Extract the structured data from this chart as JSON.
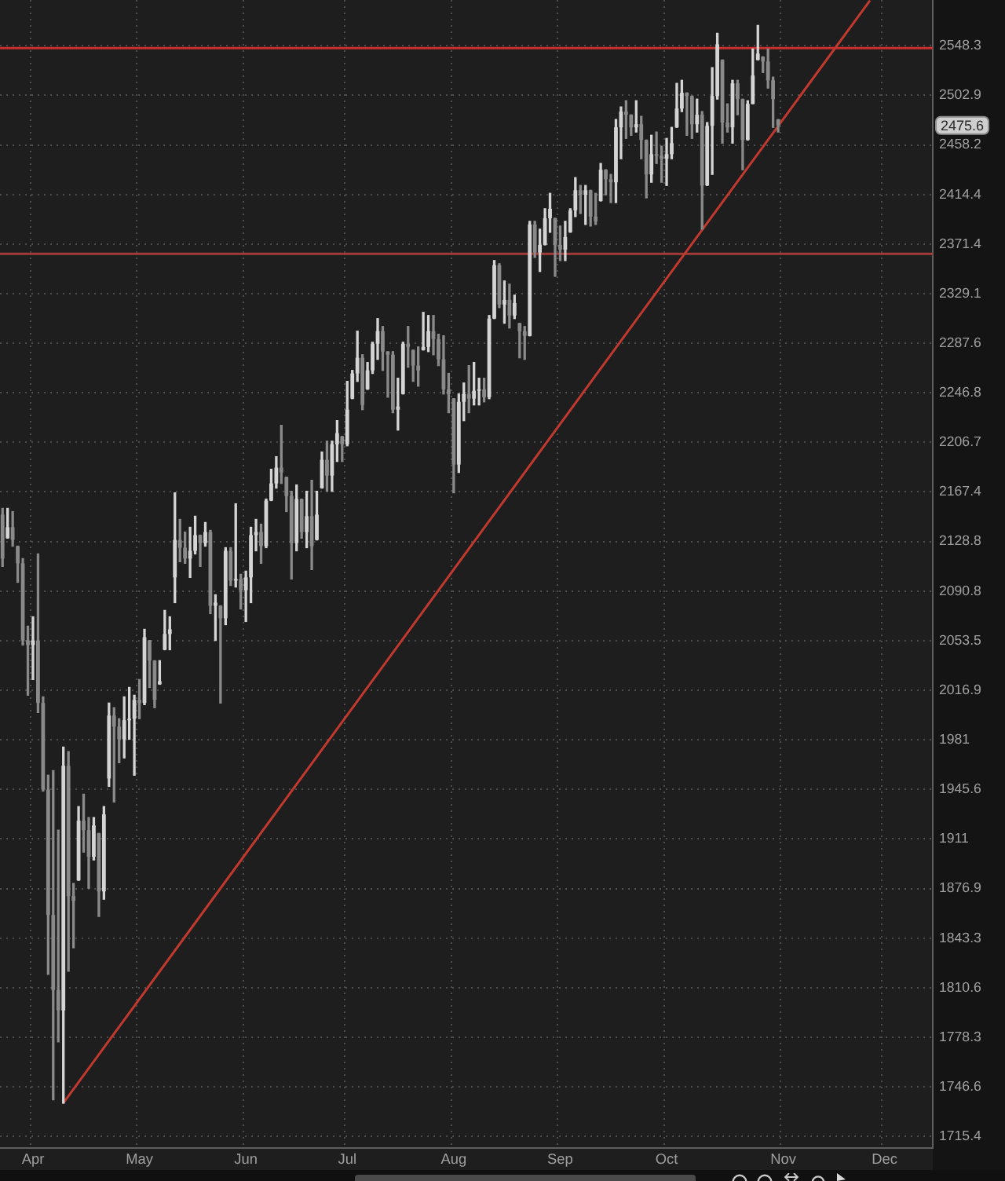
{
  "chart_data": {
    "type": "candlestick",
    "categories": [
      null,
      null,
      null,
      null,
      null,
      null,
      "Apr",
      null,
      null,
      null,
      null,
      null,
      null,
      null,
      null,
      null,
      null,
      null,
      null,
      null,
      null,
      null,
      null,
      null,
      null,
      null,
      null,
      "May",
      null,
      null,
      null,
      null,
      null,
      null,
      null,
      null,
      null,
      null,
      null,
      null,
      null,
      null,
      null,
      null,
      null,
      null,
      null,
      null,
      "Jun",
      null,
      null,
      null,
      null,
      null,
      null,
      null,
      null,
      null,
      null,
      null,
      null,
      null,
      null,
      null,
      null,
      null,
      null,
      null,
      "Jul",
      null,
      null,
      null,
      null,
      null,
      null,
      null,
      null,
      null,
      null,
      null,
      null,
      null,
      null,
      null,
      null,
      null,
      null,
      null,
      null,
      "Aug",
      null,
      null,
      null,
      null,
      null,
      null,
      null,
      null,
      null,
      null,
      null,
      null,
      null,
      null,
      null,
      null,
      null,
      null,
      null,
      null,
      "Sep",
      null,
      null,
      null,
      null,
      null,
      null,
      null,
      null,
      null,
      null,
      null,
      null,
      null,
      null,
      null,
      null,
      null,
      null,
      null,
      null,
      "Oct",
      null,
      null,
      null,
      null,
      null,
      null,
      null,
      null,
      null,
      null,
      null,
      null,
      null,
      null,
      null,
      null,
      null,
      null,
      null,
      null,
      null,
      null,
      "Nov",
      null,
      null,
      null,
      null,
      null,
      null,
      null,
      null,
      null,
      null,
      null,
      null,
      null,
      null,
      null,
      null,
      null,
      null,
      null,
      "Dec",
      null,
      null,
      null,
      null,
      null,
      null,
      null,
      null,
      null
    ],
    "ohlc": [
      [
        2149.6,
        2154.5,
        2109.6,
        2115.6
      ],
      [
        2131.3,
        2154.5,
        2131.3,
        2139.8
      ],
      [
        2139.8,
        2152.0,
        2125.2,
        2130.0
      ],
      [
        2125.2,
        2125.2,
        2097.5,
        2112.0
      ],
      [
        2112.0,
        2115.6,
        2050.3,
        2053.7
      ],
      [
        2053.7,
        2064.4,
        2013.3,
        2050.3
      ],
      [
        2050.3,
        2071.4,
        2024.8,
        2053.7
      ],
      [
        2053.7,
        2119.2,
        2000.8,
        2007.6
      ],
      [
        2007.6,
        2012.1,
        1944.5,
        1945.6
      ],
      [
        1945.6,
        1955.7,
        1819.4,
        1859.0
      ],
      [
        1859.0,
        1959.0,
        1738.4,
        1809.1
      ],
      [
        1809.1,
        1917.1,
        1775.4,
        1795.8
      ],
      [
        1795.8,
        1975.8,
        1736.4,
        1962.4
      ],
      [
        1962.4,
        1972.5,
        1821.5,
        1871.8
      ],
      [
        1871.8,
        1880.4,
        1837.0,
        1868.6
      ],
      [
        1882.5,
        1933.6,
        1882.5,
        1923.7
      ],
      [
        1923.7,
        1942.3,
        1901.9,
        1917.1
      ],
      [
        1917.1,
        1925.9,
        1877.1,
        1898.7
      ],
      [
        1898.7,
        1925.9,
        1896.5,
        1920.4
      ],
      [
        1914.9,
        1914.9,
        1858.0,
        1875.0
      ],
      [
        1875.0,
        1933.6,
        1869.7,
        1928.1
      ],
      [
        1953.4,
        2007.6,
        1947.8,
        1998.5
      ],
      [
        1998.5,
        2004.2,
        1936.8,
        1990.5
      ],
      [
        1990.5,
        1996.2,
        1964.6,
        1981.4
      ],
      [
        1981.4,
        2012.1,
        1968.0,
        1995.1
      ],
      [
        1995.1,
        2019.0,
        1981.4,
        1996.2
      ],
      [
        1996.2,
        2013.3,
        1955.7,
        2009.9
      ],
      [
        2009.9,
        2024.8,
        1996.2,
        2007.6
      ],
      [
        2007.6,
        2062.0,
        2006.4,
        2056.1
      ],
      [
        2053.7,
        2053.7,
        2019.0,
        2038.7
      ],
      [
        2038.7,
        2038.7,
        2004.2,
        2009.9
      ],
      [
        2021.3,
        2038.7,
        2021.3,
        2023.6
      ],
      [
        2046.8,
        2076.2,
        2046.8,
        2058.5
      ],
      [
        2058.5,
        2071.4,
        2046.8,
        2062.0
      ],
      [
        2101.2,
        2166.7,
        2082.1,
        2130.0
      ],
      [
        2130.0,
        2145.9,
        2113.2,
        2124.0
      ],
      [
        2124.0,
        2136.1,
        2112.0,
        2115.6
      ],
      [
        2115.6,
        2139.8,
        2101.2,
        2121.6
      ],
      [
        2121.6,
        2148.4,
        2119.2,
        2133.7
      ],
      [
        2133.7,
        2133.7,
        2109.6,
        2127.6
      ],
      [
        2127.6,
        2143.5,
        2125.2,
        2136.1
      ],
      [
        2136.1,
        2137.4,
        2073.8,
        2079.7
      ],
      [
        2079.7,
        2088.0,
        2053.7,
        2082.1
      ],
      [
        2079.7,
        2079.7,
        2007.6,
        2070.3
      ],
      [
        2070.3,
        2124.0,
        2065.5,
        2121.6
      ],
      [
        2121.6,
        2124.0,
        2095.1,
        2098.8
      ],
      [
        2098.8,
        2158.1,
        2093.9,
        2100.0
      ],
      [
        2100.0,
        2103.6,
        2077.3,
        2091.5
      ],
      [
        2091.5,
        2106.0,
        2067.9,
        2101.2
      ],
      [
        2101.2,
        2139.8,
        2082.1,
        2133.7
      ],
      [
        2133.7,
        2145.9,
        2121.6,
        2136.1
      ],
      [
        2136.1,
        2142.2,
        2112.0,
        2125.2
      ],
      [
        2125.2,
        2161.8,
        2124.0,
        2160.6
      ],
      [
        2160.6,
        2185.3,
        2160.6,
        2174.1
      ],
      [
        2174.1,
        2195.3,
        2170.4,
        2186.6
      ],
      [
        2186.6,
        2220.4,
        2174.1,
        2182.8
      ],
      [
        2179.1,
        2179.1,
        2152.0,
        2164.2
      ],
      [
        2164.2,
        2167.9,
        2100.0,
        2127.6
      ],
      [
        2127.6,
        2172.9,
        2121.6,
        2161.8
      ],
      [
        2161.8,
        2161.8,
        2131.3,
        2136.1
      ],
      [
        2136.1,
        2167.9,
        2124.0,
        2148.4
      ],
      [
        2148.4,
        2176.6,
        2107.2,
        2125.2
      ],
      [
        2130.0,
        2167.9,
        2130.0,
        2149.6
      ],
      [
        2170.4,
        2199.0,
        2170.4,
        2192.8
      ],
      [
        2192.8,
        2207.7,
        2167.9,
        2180.3
      ],
      [
        2180.3,
        2207.7,
        2167.9,
        2205.2
      ],
      [
        2205.2,
        2224.2,
        2191.5,
        2214.1
      ],
      [
        2211.5,
        2211.5,
        2191.5,
        2205.2
      ],
      [
        2205.2,
        2256.1,
        2204.0,
        2233.1
      ],
      [
        2242.0,
        2265.1,
        2242.0,
        2262.6
      ],
      [
        2262.6,
        2297.6,
        2256.1,
        2275.5
      ],
      [
        2275.5,
        2278.0,
        2233.1,
        2236.9
      ],
      [
        2249.6,
        2271.6,
        2249.6,
        2265.1
      ],
      [
        2265.1,
        2288.4,
        2262.6,
        2287.1
      ],
      [
        2287.1,
        2308.1,
        2274.2,
        2297.6
      ],
      [
        2297.6,
        2301.5,
        2265.1,
        2280.6
      ],
      [
        2280.6,
        2280.6,
        2243.2,
        2278.0
      ],
      [
        2278.0,
        2280.6,
        2230.6,
        2233.1
      ],
      [
        2233.1,
        2258.7,
        2216.6,
        2235.6
      ],
      [
        2245.8,
        2288.4,
        2245.8,
        2287.1
      ],
      [
        2287.1,
        2301.5,
        2267.7,
        2284.5
      ],
      [
        2281.9,
        2281.9,
        2256.1,
        2269.0
      ],
      [
        2269.0,
        2284.5,
        2252.2,
        2265.1
      ],
      [
        2281.9,
        2313.3,
        2281.9,
        2284.5
      ],
      [
        2284.5,
        2310.7,
        2280.6,
        2297.6
      ],
      [
        2297.6,
        2310.7,
        2278.0,
        2291.0
      ],
      [
        2291.0,
        2295.0,
        2269.0,
        2274.2
      ],
      [
        2274.2,
        2293.7,
        2245.8,
        2249.6
      ],
      [
        2249.6,
        2262.6,
        2230.6,
        2245.8
      ],
      [
        2242.0,
        2242.0,
        2166.7,
        2189.0
      ],
      [
        2189.0,
        2245.8,
        2182.8,
        2239.4
      ],
      [
        2239.4,
        2254.8,
        2224.2,
        2245.8
      ],
      [
        2245.8,
        2269.0,
        2230.6,
        2242.0
      ],
      [
        2242.0,
        2271.6,
        2236.9,
        2248.4
      ],
      [
        2248.4,
        2258.7,
        2236.9,
        2249.6
      ],
      [
        2249.6,
        2258.7,
        2239.4,
        2243.2
      ],
      [
        2243.2,
        2310.7,
        2242.0,
        2308.1
      ],
      [
        2308.1,
        2357.2,
        2308.1,
        2353.2
      ],
      [
        2353.2,
        2354.5,
        2317.3,
        2319.9
      ],
      [
        2319.9,
        2339.8,
        2304.2,
        2323.8
      ],
      [
        2323.8,
        2337.1,
        2300.2,
        2310.7
      ],
      [
        2310.7,
        2327.8,
        2308.1,
        2321.2
      ],
      [
        2304.2,
        2304.2,
        2275.5,
        2297.6
      ],
      [
        2297.6,
        2301.5,
        2274.2,
        2293.7
      ],
      [
        2293.7,
        2391.0,
        2293.7,
        2388.3
      ],
      [
        2388.3,
        2391.0,
        2359.9,
        2364.0
      ],
      [
        2364.0,
        2384.2,
        2347.9,
        2370.6
      ],
      [
        2370.6,
        2401.9,
        2370.6,
        2393.7
      ],
      [
        2393.7,
        2415.4,
        2381.5,
        2401.9
      ],
      [
        2393.7,
        2393.7,
        2343.8,
        2370.6
      ],
      [
        2370.6,
        2386.9,
        2357.2,
        2366.6
      ],
      [
        2366.6,
        2391.0,
        2357.2,
        2377.4
      ],
      [
        2381.5,
        2401.9,
        2381.5,
        2400.5
      ],
      [
        2400.5,
        2429.2,
        2395.1,
        2418.1
      ],
      [
        2418.1,
        2422.3,
        2397.8,
        2414.1
      ],
      [
        2414.1,
        2422.3,
        2388.3,
        2418.1
      ],
      [
        2418.1,
        2418.1,
        2386.9,
        2395.1
      ],
      [
        2395.1,
        2415.4,
        2388.3,
        2391.0
      ],
      [
        2408.7,
        2441.7,
        2408.7,
        2436.2
      ],
      [
        2436.2,
        2436.2,
        2414.1,
        2427.8
      ],
      [
        2427.8,
        2432.0,
        2407.3,
        2425.1
      ],
      [
        2425.1,
        2481.0,
        2407.3,
        2473.9
      ],
      [
        2473.9,
        2492.3,
        2445.9,
        2488.1
      ],
      [
        2488.1,
        2497.9,
        2464.0,
        2485.2
      ],
      [
        2485.2,
        2485.2,
        2466.8,
        2473.9
      ],
      [
        2473.9,
        2497.9,
        2469.7,
        2476.7
      ],
      [
        2476.7,
        2483.8,
        2445.9,
        2462.6
      ],
      [
        2462.6,
        2462.6,
        2411.4,
        2432.0
      ],
      [
        2432.0,
        2466.8,
        2425.1,
        2450.0
      ],
      [
        2450.0,
        2469.7,
        2441.7,
        2448.6
      ],
      [
        2448.6,
        2457.0,
        2425.1,
        2445.9
      ],
      [
        2445.9,
        2464.0,
        2422.3,
        2450.0
      ],
      [
        2450.0,
        2473.9,
        2445.9,
        2459.8
      ],
      [
        2473.9,
        2513.7,
        2473.9,
        2490.9
      ],
      [
        2490.9,
        2516.5,
        2488.1,
        2505.1
      ],
      [
        2505.1,
        2505.1,
        2466.8,
        2502.2
      ],
      [
        2502.2,
        2502.2,
        2464.0,
        2476.7
      ],
      [
        2476.7,
        2499.4,
        2469.7,
        2485.2
      ],
      [
        2485.2,
        2488.1,
        2384.2,
        2422.3
      ],
      [
        2422.3,
        2478.2,
        2422.3,
        2475.3
      ],
      [
        2475.3,
        2528.1,
        2432.0,
        2502.2
      ],
      [
        2502.2,
        2559.8,
        2499.4,
        2549.6
      ],
      [
        2535.2,
        2535.2,
        2459.8,
        2478.2
      ],
      [
        2478.2,
        2495.1,
        2469.7,
        2473.9
      ],
      [
        2473.9,
        2516.5,
        2459.8,
        2513.7
      ],
      [
        2513.7,
        2516.5,
        2485.2,
        2499.4
      ],
      [
        2499.4,
        2499.4,
        2436.2,
        2462.6
      ],
      [
        2462.6,
        2497.9,
        2462.6,
        2495.1
      ],
      [
        2495.1,
        2545.3,
        2495.1,
        2520.9
      ],
      [
        2535.2,
        2567.1,
        2535.2,
        2541.0
      ],
      [
        2538.1,
        2538.1,
        2523.7,
        2533.8
      ],
      [
        2533.8,
        2545.3,
        2509.4,
        2516.5
      ],
      [
        2516.5,
        2519.4,
        2473.9,
        2499.4
      ],
      [
        2481.0,
        2481.0,
        2469.7,
        2475.6
      ],
      null,
      null,
      null,
      null,
      null,
      null,
      null,
      null,
      null,
      null,
      null,
      null,
      null,
      null,
      null,
      null,
      null,
      null,
      null,
      null,
      null,
      null,
      null,
      null,
      null,
      null,
      null,
      null,
      null,
      null
    ],
    "colors": [
      "#8a8a8a",
      "#d4d4d4",
      "#8a8a8a",
      "#8a8a8a",
      "#8a8a8a",
      "#8a8a8a",
      "#d4d4d4",
      "#8a8a8a",
      "#8a8a8a",
      "#8a8a8a",
      "#8a8a8a",
      "#8a8a8a",
      "#d4d4d4",
      "#8a8a8a",
      "#8a8a8a",
      "#d4d4d4",
      "#8a8a8a",
      "#8a8a8a",
      "#d4d4d4",
      "#8a8a8a",
      "#d4d4d4",
      "#d4d4d4",
      "#8a8a8a",
      "#8a8a8a",
      "#d4d4d4",
      "#d4d4d4",
      "#d4d4d4",
      "#8a8a8a",
      "#d4d4d4",
      "#8a8a8a",
      "#8a8a8a",
      "#d4d4d4",
      "#d4d4d4",
      "#d4d4d4",
      "#d4d4d4",
      "#8a8a8a",
      "#8a8a8a",
      "#d4d4d4",
      "#d4d4d4",
      "#8a8a8a",
      "#d4d4d4",
      "#8a8a8a",
      "#d4d4d4",
      "#8a8a8a",
      "#d4d4d4",
      "#8a8a8a",
      "#d4d4d4",
      "#8a8a8a",
      "#d4d4d4",
      "#d4d4d4",
      "#d4d4d4",
      "#8a8a8a",
      "#d4d4d4",
      "#d4d4d4",
      "#d4d4d4",
      "#8a8a8a",
      "#8a8a8a",
      "#8a8a8a",
      "#d4d4d4",
      "#8a8a8a",
      "#d4d4d4",
      "#8a8a8a",
      "#d4d4d4",
      "#d4d4d4",
      "#8a8a8a",
      "#d4d4d4",
      "#d4d4d4",
      "#8a8a8a",
      "#d4d4d4",
      "#d4d4d4",
      "#d4d4d4",
      "#8a8a8a",
      "#d4d4d4",
      "#d4d4d4",
      "#d4d4d4",
      "#8a8a8a",
      "#8a8a8a",
      "#8a8a8a",
      "#d4d4d4",
      "#d4d4d4",
      "#8a8a8a",
      "#8a8a8a",
      "#8a8a8a",
      "#d4d4d4",
      "#d4d4d4",
      "#8a8a8a",
      "#8a8a8a",
      "#8a8a8a",
      "#8a8a8a",
      "#8a8a8a",
      "#d4d4d4",
      "#d4d4d4",
      "#8a8a8a",
      "#d4d4d4",
      "#d4d4d4",
      "#8a8a8a",
      "#d4d4d4",
      "#d4d4d4",
      "#8a8a8a",
      "#d4d4d4",
      "#8a8a8a",
      "#d4d4d4",
      "#8a8a8a",
      "#8a8a8a",
      "#d4d4d4",
      "#8a8a8a",
      "#d4d4d4",
      "#d4d4d4",
      "#d4d4d4",
      "#8a8a8a",
      "#8a8a8a",
      "#d4d4d4",
      "#d4d4d4",
      "#d4d4d4",
      "#8a8a8a",
      "#d4d4d4",
      "#8a8a8a",
      "#8a8a8a",
      "#d4d4d4",
      "#8a8a8a",
      "#8a8a8a",
      "#d4d4d4",
      "#d4d4d4",
      "#8a8a8a",
      "#8a8a8a",
      "#d4d4d4",
      "#8a8a8a",
      "#8a8a8a",
      "#d4d4d4",
      "#8a8a8a",
      "#8a8a8a",
      "#d4d4d4",
      "#d4d4d4",
      "#d4d4d4",
      "#d4d4d4",
      "#8a8a8a",
      "#8a8a8a",
      "#d4d4d4",
      "#8a8a8a",
      "#d4d4d4",
      "#d4d4d4",
      "#d4d4d4",
      "#8a8a8a",
      "#8a8a8a",
      "#d4d4d4",
      "#8a8a8a",
      "#8a8a8a",
      "#d4d4d4",
      "#d4d4d4",
      "#d4d4d4",
      "#8a8a8a",
      "#8a8a8a",
      "#8a8a8a",
      "#8a8a8a",
      null,
      null,
      null,
      null,
      null,
      null,
      null,
      null,
      null,
      null,
      null,
      null,
      null,
      null,
      null,
      null,
      null,
      null,
      null,
      null,
      null,
      null,
      null,
      null,
      null,
      null,
      null,
      null,
      null,
      null
    ],
    "series": [
      {
        "type": "line",
        "color": "#c0392f",
        "values": [
          null,
          null,
          null,
          null,
          null,
          null,
          null,
          null,
          null,
          null,
          null,
          null,
          1736.4,
          null,
          null,
          null,
          null,
          null,
          null,
          null,
          null,
          null,
          null,
          null,
          null,
          null,
          null,
          null,
          null,
          null,
          null,
          null,
          null,
          null,
          null,
          null,
          null,
          null,
          null,
          null,
          null,
          null,
          null,
          null,
          null,
          null,
          null,
          null,
          null,
          null,
          null,
          null,
          null,
          null,
          null,
          null,
          null,
          null,
          null,
          null,
          null,
          null,
          null,
          null,
          null,
          null,
          null,
          null,
          null,
          null,
          null,
          null,
          null,
          null,
          null,
          null,
          null,
          null,
          null,
          null,
          null,
          null,
          null,
          null,
          null,
          null,
          null,
          null,
          null,
          null,
          null,
          null,
          null,
          null,
          null,
          null,
          null,
          null,
          null,
          null,
          null,
          null,
          null,
          null,
          null,
          null,
          null,
          null,
          null,
          null,
          null,
          null,
          null,
          null,
          null,
          null,
          null,
          null,
          null,
          null,
          null,
          null,
          null,
          null,
          null,
          null,
          null,
          null,
          null,
          null,
          null,
          null,
          null,
          null,
          null,
          null,
          null,
          null,
          null,
          null,
          null,
          null,
          null,
          null,
          null,
          null,
          null,
          null,
          null,
          null,
          null,
          null,
          null,
          null,
          null,
          null,
          null,
          null,
          null,
          null,
          null,
          null,
          null,
          null,
          null,
          null,
          null,
          null,
          null,
          null,
          null,
          2589.7,
          null,
          null,
          null,
          null,
          null,
          null,
          null,
          null,
          null,
          null,
          null,
          null
        ]
      }
    ],
    "ylim": [
      1708.3,
      2590.9
    ],
    "yticks": [
      1715.4,
      1746.6,
      1778.3,
      1810.6,
      1843.3,
      1876.9,
      1911,
      1945.6,
      1981,
      2016.9,
      2053.5,
      2090.8,
      2128.8,
      2167.4,
      2206.7,
      2246.8,
      2287.6,
      2329.1,
      2371.4,
      2414.4,
      2458.2,
      2502.9,
      2548.3
    ],
    "log": true,
    "grid": true,
    "ref_lines": [
      {
        "axis": "y",
        "value": 2546,
        "color": "#c8302c"
      },
      {
        "axis": "y",
        "value": 2363,
        "color": "#a23b38"
      }
    ],
    "annotations": [
      "2475.6"
    ]
  }
}
